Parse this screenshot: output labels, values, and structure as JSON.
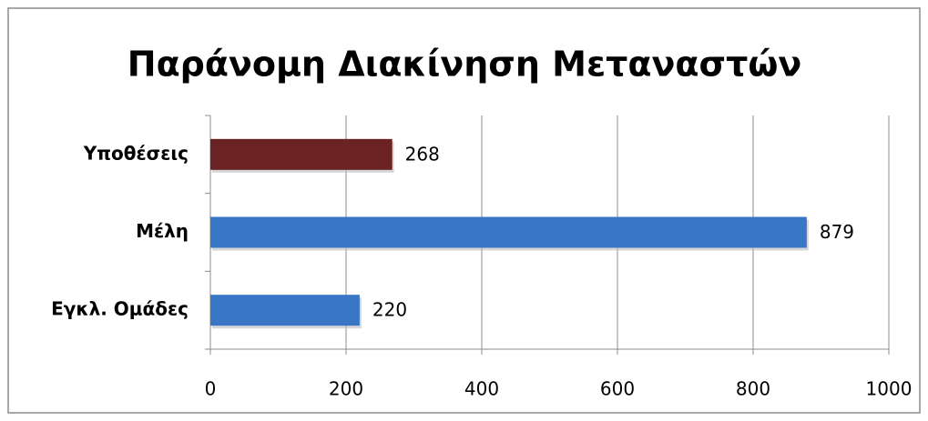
{
  "chart_data": {
    "type": "bar",
    "orientation": "horizontal",
    "title": "Παράνομη Διακίνηση Μεταναστών",
    "categories": [
      "Υποθέσεις",
      "Μέλη",
      "Εγκλ. Ομάδες"
    ],
    "values": [
      268,
      879,
      220
    ],
    "colors": [
      "#6b2222",
      "#3a76c6",
      "#3a76c6"
    ],
    "xlim": [
      0,
      1000
    ],
    "xticks": [
      0,
      200,
      400,
      600,
      800,
      1000
    ],
    "grid": true
  }
}
